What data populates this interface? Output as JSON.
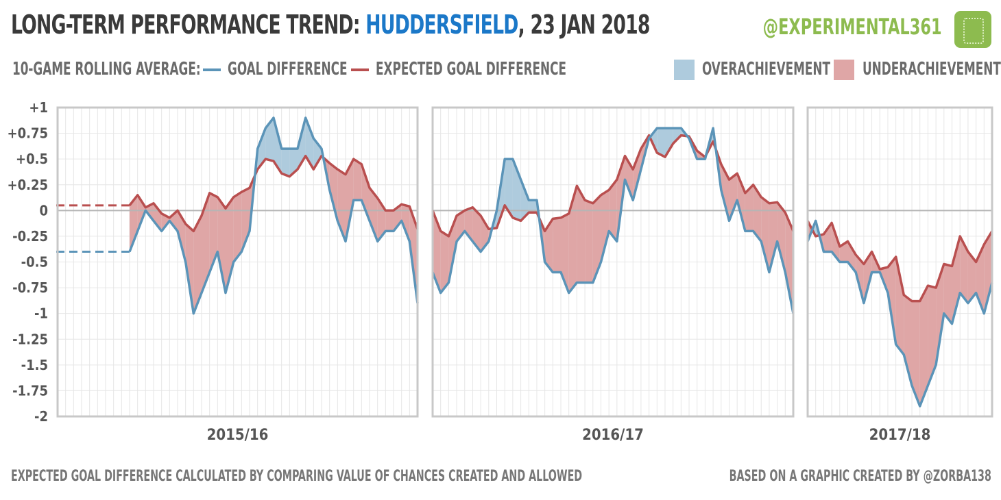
{
  "header": {
    "title_prefix": "LONG-TERM PERFORMANCE TREND: ",
    "team": "HUDDERSFIELD",
    "title_suffix": ", 23 JAN 2018",
    "handle": "@EXPERIMENTAL361"
  },
  "legend": {
    "prefix": "10-GAME ROLLING AVERAGE:",
    "goal_difference": "GOAL DIFFERENCE",
    "expected_goal_difference": "EXPECTED GOAL DIFFERENCE",
    "over": "OVERACHIEVEMENT",
    "under": "UNDERACHIEVEMENT"
  },
  "footer": {
    "left": "EXPECTED GOAL DIFFERENCE CALCULATED BY COMPARING VALUE OF CHANCES CREATED AND ALLOWED",
    "right": "BASED ON A GRAPHIC CREATED BY @ZORBA138"
  },
  "colors": {
    "gd": "#5b94b8",
    "xgd": "#b94f4f",
    "over_fill": "#aecbdd",
    "under_fill": "#dfa6a6",
    "grid": "#e6e6e6",
    "frame": "#c8c8c8",
    "zero": "#b5b5b5"
  },
  "chart_data": {
    "type": "line",
    "ylim": [
      -2,
      1
    ],
    "yticks": [
      {
        "v": 1,
        "label": "+1"
      },
      {
        "v": 0.75,
        "label": "+0.75"
      },
      {
        "v": 0.5,
        "label": "+0.5"
      },
      {
        "v": 0.25,
        "label": "+0.25"
      },
      {
        "v": 0,
        "label": "0"
      },
      {
        "v": -0.25,
        "label": "-0.25"
      },
      {
        "v": -0.5,
        "label": "-0.5"
      },
      {
        "v": -0.75,
        "label": "-0.75"
      },
      {
        "v": -1,
        "label": "-1"
      },
      {
        "v": -1.25,
        "label": "-1.25"
      },
      {
        "v": -1.5,
        "label": "-1.5"
      },
      {
        "v": -1.75,
        "label": "-1.75"
      },
      {
        "v": -2,
        "label": "-2"
      }
    ],
    "series_names": [
      "GOAL DIFFERENCE",
      "EXPECTED GOAL DIFFERENCE"
    ],
    "panels": [
      {
        "season": "2015/16",
        "games": 46,
        "prior": {
          "gd": -0.4,
          "xgd": 0.05
        },
        "start": 9,
        "gd": [
          -0.4,
          -0.2,
          0,
          -0.1,
          -0.2,
          -0.1,
          -0.2,
          -0.5,
          -1,
          -0.8,
          -0.6,
          -0.4,
          -0.8,
          -0.5,
          -0.4,
          -0.2,
          0.6,
          0.8,
          0.9,
          0.6,
          0.6,
          0.6,
          0.9,
          0.7,
          0.6,
          0.2,
          -0.1,
          -0.3,
          0.1,
          0.1,
          -0.1,
          -0.3,
          -0.2,
          -0.2,
          -0.1,
          -0.3,
          -0.9
        ],
        "xgd": [
          0.05,
          0.15,
          0.03,
          0.07,
          -0.03,
          -0.07,
          0,
          -0.13,
          -0.2,
          -0.05,
          0.17,
          0.13,
          0.02,
          0.13,
          0.18,
          0.22,
          0.4,
          0.5,
          0.48,
          0.36,
          0.33,
          0.4,
          0.53,
          0.4,
          0.53,
          0.46,
          0.4,
          0.35,
          0.5,
          0.45,
          0.22,
          0.12,
          0,
          0,
          0.06,
          0.04,
          -0.18
        ]
      },
      {
        "season": "2016/17",
        "games": 46,
        "start": 0,
        "gd": [
          -0.6,
          -0.8,
          -0.7,
          -0.3,
          -0.2,
          -0.3,
          -0.4,
          -0.3,
          0,
          0.5,
          0.5,
          0.3,
          0.1,
          0.1,
          -0.5,
          -0.6,
          -0.6,
          -0.8,
          -0.7,
          -0.7,
          -0.7,
          -0.5,
          -0.2,
          -0.3,
          0.3,
          0.1,
          0.4,
          0.7,
          0.8,
          0.8,
          0.8,
          0.8,
          0.7,
          0.5,
          0.5,
          0.8,
          0.2,
          -0.1,
          0.1,
          -0.2,
          -0.2,
          -0.3,
          -0.6,
          -0.3,
          -0.6,
          -1
        ],
        "xgd": [
          0,
          -0.2,
          -0.25,
          -0.05,
          0,
          0.03,
          -0.05,
          -0.18,
          -0.17,
          0.05,
          -0.07,
          -0.1,
          -0.02,
          -0.02,
          -0.2,
          -0.08,
          -0.07,
          -0.03,
          0.24,
          0.1,
          0.07,
          0.15,
          0.2,
          0.3,
          0.53,
          0.4,
          0.6,
          0.73,
          0.56,
          0.52,
          0.65,
          0.73,
          0.72,
          0.58,
          0.52,
          0.67,
          0.45,
          0.3,
          0.36,
          0.17,
          0.25,
          0.13,
          0.07,
          0.08,
          -0.02,
          -0.2
        ]
      },
      {
        "season": "2017/18",
        "games": 24,
        "start": 0,
        "gd": [
          -0.3,
          -0.1,
          -0.4,
          -0.4,
          -0.5,
          -0.5,
          -0.6,
          -0.9,
          -0.6,
          -0.6,
          -0.8,
          -1.3,
          -1.4,
          -1.7,
          -1.9,
          -1.7,
          -1.5,
          -1,
          -1.1,
          -0.8,
          -0.9,
          -0.8,
          -1,
          -0.7
        ],
        "xgd": [
          -0.1,
          -0.25,
          -0.23,
          -0.12,
          -0.35,
          -0.3,
          -0.43,
          -0.52,
          -0.4,
          -0.57,
          -0.55,
          -0.45,
          -0.82,
          -0.88,
          -0.88,
          -0.73,
          -0.75,
          -0.52,
          -0.54,
          -0.25,
          -0.4,
          -0.5,
          -0.33,
          -0.2
        ]
      }
    ]
  }
}
